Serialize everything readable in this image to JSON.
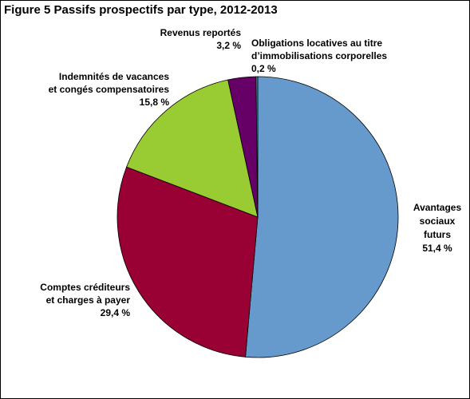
{
  "chart_data": {
    "type": "pie",
    "title": "Figure 5  Passifs prospectifs par type, 2012-2013",
    "slices": [
      {
        "label_lines": [
          "Avantages",
          "sociaux",
          "futurs"
        ],
        "value": 51.4,
        "value_label": "51,4 %",
        "color": "#6699CC"
      },
      {
        "label_lines": [
          "Comptes créditeurs",
          "et charges à payer"
        ],
        "value": 29.4,
        "value_label": "29,4 %",
        "color": "#990033"
      },
      {
        "label_lines": [
          "Indemnités de vacances",
          "et congés compensatoires"
        ],
        "value": 15.8,
        "value_label": "15,8 %",
        "color": "#99CC33"
      },
      {
        "label_lines": [
          "Revenus reportés"
        ],
        "value": 3.2,
        "value_label": "3,2 %",
        "color": "#660066"
      },
      {
        "label_lines": [
          "Obligations locatives au titre",
          "d’immobilisations corporelles"
        ],
        "value": 0.2,
        "value_label": "0,2 %",
        "color": "#339999"
      }
    ]
  }
}
